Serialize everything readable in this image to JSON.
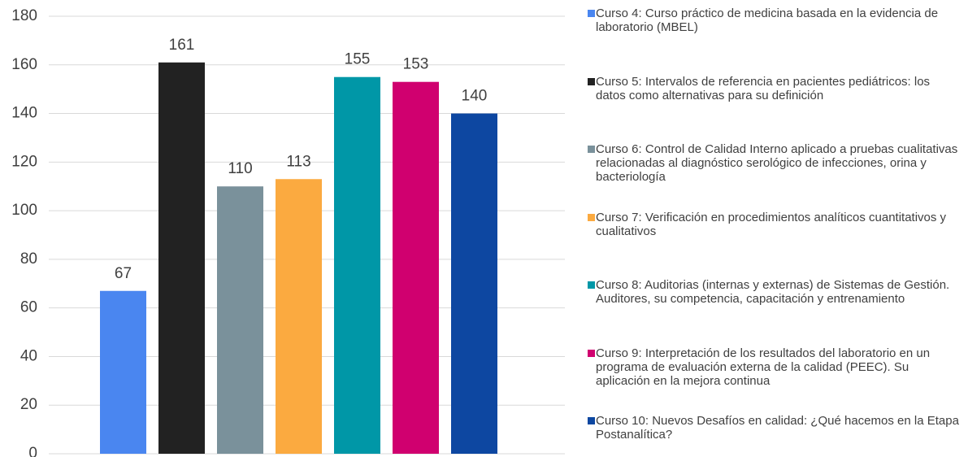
{
  "chart_data": {
    "type": "bar",
    "categories": [
      null
    ],
    "series": [
      {
        "name": "Curso 4: Curso práctico de medicina basada en la evidencia de laboratorio (MBEL)",
        "color": "#4a86f0",
        "values": [
          67
        ]
      },
      {
        "name": "Curso 5: Intervalos de referencia en pacientes pediátricos: los datos como alternativas para su definición",
        "color": "#222222",
        "values": [
          161
        ]
      },
      {
        "name": "Curso 6: Control de Calidad Interno aplicado a pruebas cualitativas relacionadas al diagnóstico serológico de infecciones, orina y bacteriología",
        "color": "#7a919b",
        "values": [
          110
        ]
      },
      {
        "name": "Curso 7: Verificación en procedimientos analíticos cuantitativos y cualitativos",
        "color": "#fbaa40",
        "values": [
          113
        ]
      },
      {
        "name": "Curso 8: Auditorias (internas y externas) de Sistemas de Gestión. Auditores, su competencia, capacitación y entrenamiento",
        "color": "#0097a7",
        "values": [
          155
        ]
      },
      {
        "name": "Curso 9: Interpretación de los resultados del laboratorio en un programa de evaluación externa de la calidad (PEEC). Su aplicación en la mejora continua",
        "color": "#d0006f",
        "values": [
          153
        ]
      },
      {
        "name": "Curso 10: Nuevos Desafíos en calidad: ¿Qué hacemos en la Etapa Postanalítica?",
        "color": "#0d47a1",
        "values": [
          140
        ]
      }
    ],
    "ylim": [
      0,
      180
    ],
    "yticks": [
      0,
      20,
      40,
      60,
      80,
      100,
      120,
      140,
      160,
      180
    ],
    "grid": true,
    "legend": "right"
  }
}
